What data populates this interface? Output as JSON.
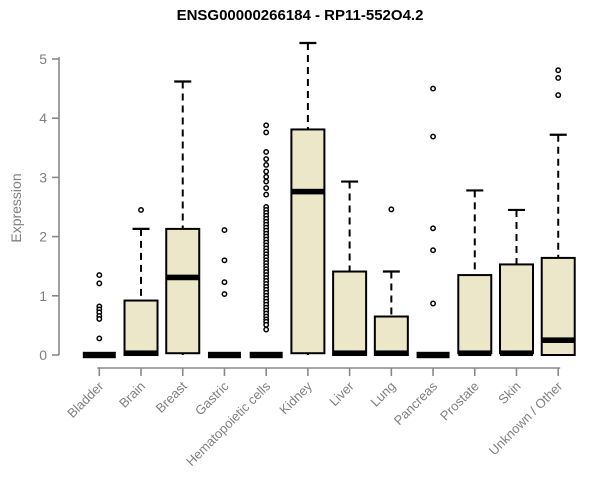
{
  "chart_data": {
    "type": "boxplot",
    "title": "ENSG00000266184 - RP11-552O4.2",
    "ylabel": "Expression",
    "xlabel": "",
    "ylim": [
      0,
      5
    ],
    "yticks": [
      0,
      1,
      2,
      3,
      4,
      5
    ],
    "grid": false,
    "legend": "none",
    "colors": {
      "box_fill": "#ece7c8",
      "box_stroke": "#000000",
      "axis": "#888888",
      "tick_label": "#7f7f7f",
      "title": "#000000"
    },
    "categories": [
      "Bladder",
      "Brain",
      "Breast",
      "Gastric",
      "Hematopoietic cells",
      "Kidney",
      "Liver",
      "Lung",
      "Pancreas",
      "Prostate",
      "Skin",
      "Unknown / Other"
    ],
    "series": [
      {
        "category": "Bladder",
        "whisker_low": 0,
        "q1": 0,
        "median": 0,
        "q3": 0,
        "whisker_high": 0,
        "outliers": [
          1.35,
          1.21,
          0.82,
          0.77,
          0.72,
          0.66,
          0.61,
          0.28
        ]
      },
      {
        "category": "Brain",
        "whisker_low": 0,
        "q1": 0,
        "median": 0.03,
        "q3": 0.92,
        "whisker_high": 2.13,
        "outliers": [
          2.45
        ]
      },
      {
        "category": "Breast",
        "whisker_low": 0,
        "q1": 0.03,
        "median": 1.31,
        "q3": 2.13,
        "whisker_high": 4.62,
        "outliers": []
      },
      {
        "category": "Gastric",
        "whisker_low": 0,
        "q1": 0,
        "median": 0,
        "q3": 0,
        "whisker_high": 0,
        "outliers": [
          2.11,
          1.6,
          1.23,
          1.03
        ]
      },
      {
        "category": "Hematopoietic cells",
        "whisker_low": 0,
        "q1": 0,
        "median": 0,
        "q3": 0,
        "whisker_high": 0,
        "outliers": [
          3.88,
          3.76,
          3.43,
          3.31,
          3.21,
          3.1,
          3.01,
          2.93,
          2.82,
          2.71,
          2.5,
          2.45,
          2.4,
          2.35,
          2.3,
          2.25,
          2.2,
          2.15,
          2.1,
          2.05,
          2.0,
          1.95,
          1.9,
          1.85,
          1.8,
          1.75,
          1.7,
          1.65,
          1.6,
          1.55,
          1.5,
          1.45,
          1.4,
          1.35,
          1.3,
          1.25,
          1.2,
          1.15,
          1.1,
          1.05,
          1.0,
          0.95,
          0.9,
          0.85,
          0.8,
          0.75,
          0.7,
          0.65,
          0.6,
          0.56,
          0.51,
          0.43
        ]
      },
      {
        "category": "Kidney",
        "whisker_low": 0,
        "q1": 0.03,
        "median": 2.76,
        "q3": 3.81,
        "whisker_high": 5.27,
        "outliers": []
      },
      {
        "category": "Liver",
        "whisker_low": 0,
        "q1": 0,
        "median": 0.03,
        "q3": 1.41,
        "whisker_high": 2.93,
        "outliers": []
      },
      {
        "category": "Lung",
        "whisker_low": 0,
        "q1": 0,
        "median": 0.03,
        "q3": 0.65,
        "whisker_high": 1.41,
        "outliers": [
          2.46
        ]
      },
      {
        "category": "Pancreas",
        "whisker_low": 0,
        "q1": 0,
        "median": 0,
        "q3": 0,
        "whisker_high": 0,
        "outliers": [
          4.5,
          3.69,
          2.14,
          1.77,
          0.87
        ]
      },
      {
        "category": "Prostate",
        "whisker_low": 0,
        "q1": 0.03,
        "median": 0.03,
        "q3": 1.35,
        "whisker_high": 2.78,
        "outliers": []
      },
      {
        "category": "Skin",
        "whisker_low": 0,
        "q1": 0.03,
        "median": 0.03,
        "q3": 1.53,
        "whisker_high": 2.45,
        "outliers": []
      },
      {
        "category": "Unknown / Other",
        "whisker_low": 0,
        "q1": 0,
        "median": 0.25,
        "q3": 1.64,
        "whisker_high": 3.72,
        "outliers": [
          4.81,
          4.68,
          4.39
        ]
      }
    ]
  }
}
